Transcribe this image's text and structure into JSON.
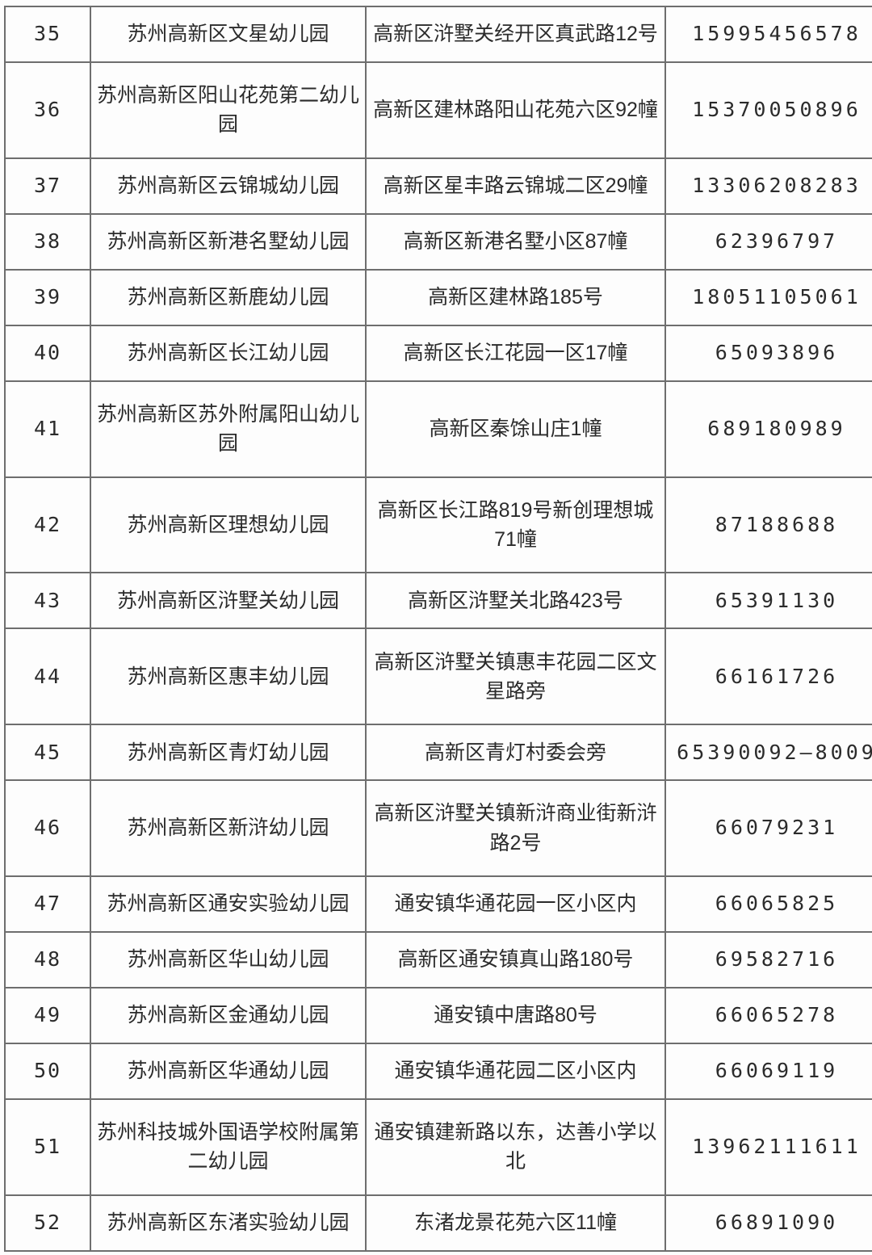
{
  "table": {
    "rows": [
      {
        "no": "35",
        "name": "苏州高新区文星幼儿园",
        "address": "高新区浒墅关经开区真武路12号",
        "phone": "15995456578"
      },
      {
        "no": "36",
        "name": "苏州高新区阳山花苑第二幼儿园",
        "address": "高新区建林路阳山花苑六区92幢",
        "phone": "15370050896"
      },
      {
        "no": "37",
        "name": "苏州高新区云锦城幼儿园",
        "address": "高新区星丰路云锦城二区29幢",
        "phone": "13306208283"
      },
      {
        "no": "38",
        "name": "苏州高新区新港名墅幼儿园",
        "address": "高新区新港名墅小区87幢",
        "phone": "62396797"
      },
      {
        "no": "39",
        "name": "苏州高新区新鹿幼儿园",
        "address": "高新区建林路185号",
        "phone": "18051105061"
      },
      {
        "no": "40",
        "name": "苏州高新区长江幼儿园",
        "address": "高新区长江花园一区17幢",
        "phone": "65093896"
      },
      {
        "no": "41",
        "name": "苏州高新区苏外附属阳山幼儿园",
        "address": "高新区秦馀山庄1幢",
        "phone": "689180989"
      },
      {
        "no": "42",
        "name": "苏州高新区理想幼儿园",
        "address": "高新区长江路819号新创理想城71幢",
        "phone": "87188688"
      },
      {
        "no": "43",
        "name": "苏州高新区浒墅关幼儿园",
        "address": "高新区浒墅关北路423号",
        "phone": "65391130"
      },
      {
        "no": "44",
        "name": "苏州高新区惠丰幼儿园",
        "address": "高新区浒墅关镇惠丰花园二区文星路旁",
        "phone": "66161726"
      },
      {
        "no": "45",
        "name": "苏州高新区青灯幼儿园",
        "address": "高新区青灯村委会旁",
        "phone": "65390092—8009"
      },
      {
        "no": "46",
        "name": "苏州高新区新浒幼儿园",
        "address": "高新区浒墅关镇新浒商业街新浒路2号",
        "phone": "66079231"
      },
      {
        "no": "47",
        "name": "苏州高新区通安实验幼儿园",
        "address": "通安镇华通花园一区小区内",
        "phone": "66065825"
      },
      {
        "no": "48",
        "name": "苏州高新区华山幼儿园",
        "address": "高新区通安镇真山路180号",
        "phone": "69582716"
      },
      {
        "no": "49",
        "name": "苏州高新区金通幼儿园",
        "address": "通安镇中唐路80号",
        "phone": "66065278"
      },
      {
        "no": "50",
        "name": "苏州高新区华通幼儿园",
        "address": "通安镇华通花园二区小区内",
        "phone": "66069119"
      },
      {
        "no": "51",
        "name": "苏州科技城外国语学校附属第二幼儿园",
        "address": "通安镇建新路以东，达善小学以北",
        "phone": "13962111611"
      },
      {
        "no": "52",
        "name": "苏州高新区东渚实验幼儿园",
        "address": "东渚龙景花苑六区11幢",
        "phone": "66891090"
      }
    ]
  }
}
